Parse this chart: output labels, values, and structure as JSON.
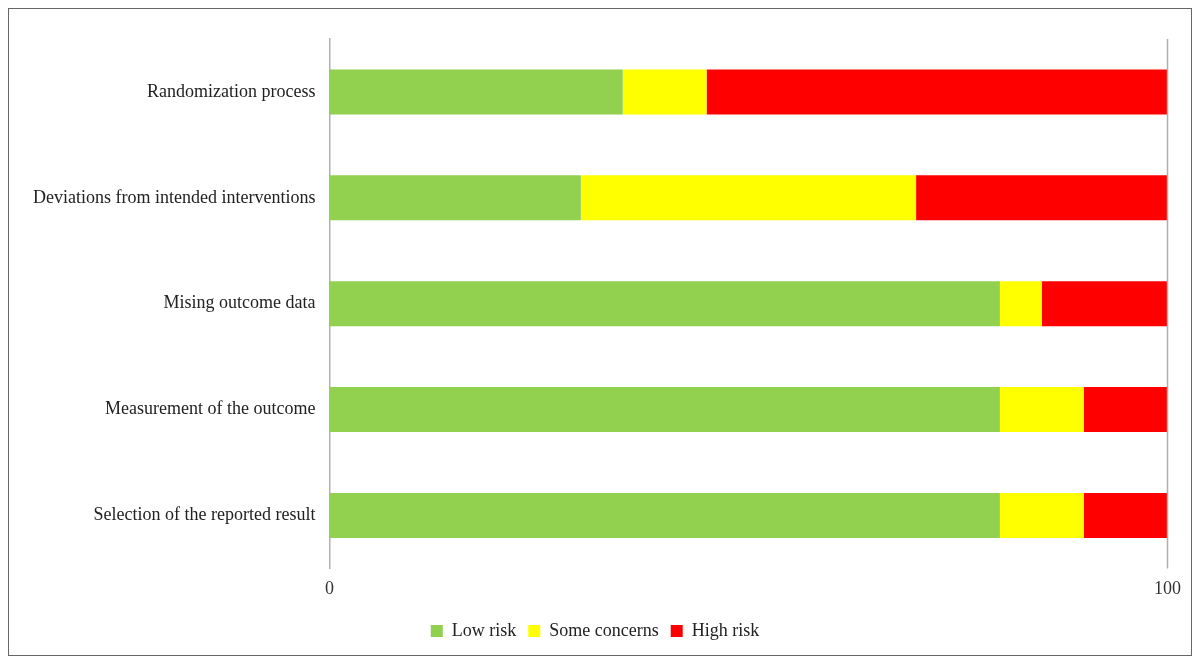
{
  "chart_data": {
    "type": "bar",
    "orientation": "horizontal",
    "stacked": true,
    "categories": [
      "Randomization process",
      "Deviations from intended interventions",
      "Mising outcome data",
      "Measurement of the outcome",
      "Selection of the reported result"
    ],
    "series": [
      {
        "name": "Low risk",
        "color": "#92d050",
        "values": [
          35,
          30,
          80,
          80,
          80
        ]
      },
      {
        "name": "Some concerns",
        "color": "#ffff00",
        "values": [
          10,
          40,
          5,
          10,
          10
        ]
      },
      {
        "name": "High risk",
        "color": "#ff0000",
        "values": [
          55,
          30,
          15,
          10,
          10
        ]
      }
    ],
    "xlim": [
      0,
      100
    ],
    "xticks": [
      0,
      100
    ],
    "legend": "bottom"
  }
}
